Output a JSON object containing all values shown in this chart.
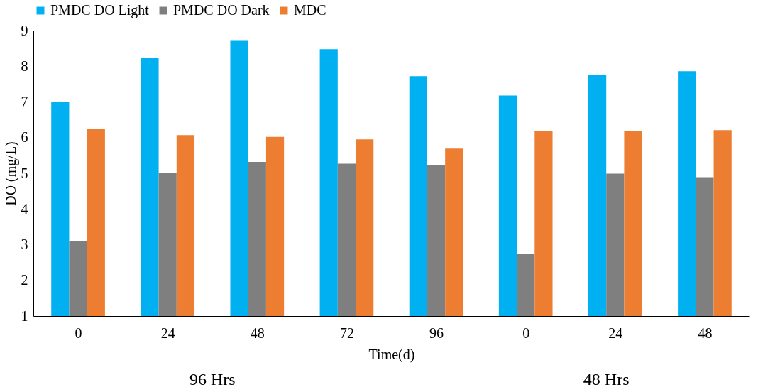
{
  "chart_data": {
    "type": "bar",
    "xlabel": "Time(d)",
    "ylabel": "DO (mg/L)",
    "categories": [
      "0",
      "24",
      "48",
      "72",
      "96",
      "0",
      "24",
      "48"
    ],
    "series": [
      {
        "name": "PMDC DO Light",
        "color": "#00b0f0",
        "values": [
          7.0,
          8.24,
          8.71,
          8.48,
          7.72,
          7.18,
          7.75,
          7.86
        ]
      },
      {
        "name": "PMDC DO Dark",
        "color": "#7f7f7f",
        "values": [
          3.1,
          5.01,
          5.32,
          5.27,
          5.22,
          2.75,
          4.99,
          4.89
        ]
      },
      {
        "name": "MDC",
        "color": "#ed7d31",
        "values": [
          6.24,
          6.07,
          6.02,
          5.95,
          5.69,
          6.19,
          6.19,
          6.21
        ]
      }
    ],
    "ylim": [
      1,
      9
    ],
    "yticks": [
      1,
      2,
      3,
      4,
      5,
      6,
      7,
      8,
      9
    ],
    "grid": false,
    "legend": "top",
    "annotations": [
      "96 Hrs",
      "48 Hrs"
    ]
  }
}
